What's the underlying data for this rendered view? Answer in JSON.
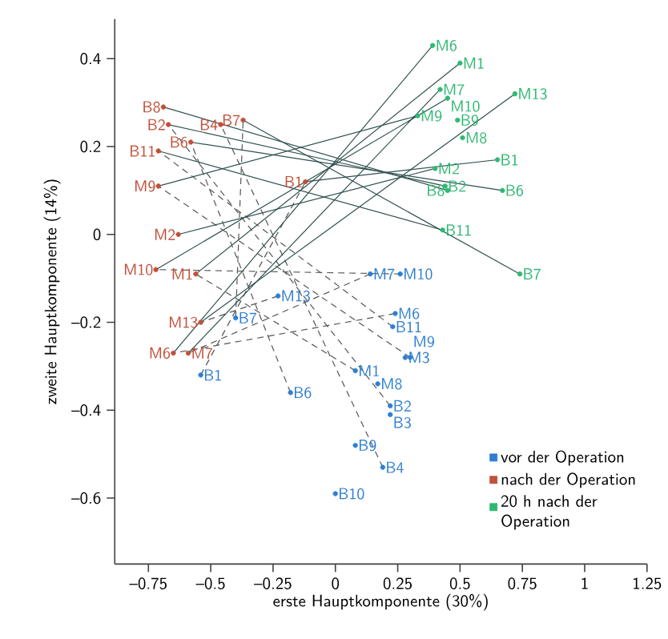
{
  "chart_data": {
    "type": "scatter",
    "xlabel": "erste Hauptkomponente (30%)",
    "ylabel": "zweite Hauptkomponente (14%)",
    "xlim": [
      -0.885,
      1.25
    ],
    "ylim": [
      -0.75,
      0.49
    ],
    "xticks": [
      {
        "value": -0.75,
        "label": "–0.75"
      },
      {
        "value": -0.5,
        "label": "–0.5"
      },
      {
        "value": -0.25,
        "label": "–0.25"
      },
      0,
      0.25,
      0.5,
      0.75,
      1,
      1.25
    ],
    "yticks": [
      {
        "value": -0.6,
        "label": "–0.6"
      },
      {
        "value": -0.4,
        "label": "–0.4"
      },
      {
        "value": -0.2,
        "label": "–0.2"
      },
      0,
      0.2,
      0.4
    ],
    "legend": "bottom right",
    "grid": false,
    "series": [
      {
        "name": "vor der Operation",
        "color": "#2f7fd0",
        "marker": "circle",
        "x": [
          -0.54,
          0.22,
          0.22,
          0.19,
          -0.18,
          -0.4,
          0.08,
          0.0,
          0.23,
          0.08,
          0.28,
          0.24,
          0.14,
          0.17,
          0.3,
          0.26,
          -0.23
        ],
        "values": [
          -0.32,
          -0.39,
          -0.41,
          -0.53,
          -0.36,
          -0.19,
          -0.48,
          -0.59,
          -0.21,
          -0.31,
          -0.28,
          -0.18,
          -0.09,
          -0.34,
          -0.28,
          -0.09,
          -0.14
        ],
        "value_labels": [
          "B1",
          "B2",
          "B3",
          "B4",
          "B6",
          "B7",
          "B9",
          "B10",
          "B11",
          "M1",
          "M3",
          "M6",
          "M7",
          "M8",
          "M9",
          "M10",
          "M13"
        ]
      },
      {
        "name": "nach der Operation",
        "color": "#c0503a",
        "marker": "circle",
        "x": [
          -0.12,
          -0.67,
          -0.69,
          -0.46,
          -0.37,
          -0.58,
          -0.71,
          -0.71,
          -0.63,
          -0.72,
          -0.56,
          -0.54,
          -0.65,
          -0.59
        ],
        "values": [
          0.12,
          0.25,
          0.29,
          0.25,
          0.26,
          0.21,
          0.19,
          0.11,
          0.0,
          -0.08,
          -0.09,
          -0.2,
          -0.27,
          -0.27
        ],
        "value_labels": [
          "B1",
          "B2",
          "B8",
          "B4",
          "B7",
          "B6",
          "B11",
          "M9",
          "M2",
          "M10",
          "M1",
          "M13",
          "M6",
          "M7"
        ]
      },
      {
        "name": "20 h nach der Operation",
        "color": "#2fb872",
        "marker": "circle",
        "x": [
          0.39,
          0.5,
          0.42,
          0.45,
          0.33,
          0.49,
          0.51,
          0.72,
          0.65,
          0.4,
          0.44,
          0.45,
          0.67,
          0.43,
          0.74
        ],
        "values": [
          0.43,
          0.39,
          0.33,
          0.31,
          0.27,
          0.26,
          0.22,
          0.32,
          0.17,
          0.15,
          0.11,
          0.1,
          0.1,
          0.01,
          -0.09
        ],
        "value_labels": [
          "M6",
          "M1",
          "M7",
          "M10",
          "M9",
          "B9",
          "M8",
          "M13",
          "B1",
          "M2",
          "B2",
          "B8",
          "B6",
          "B11",
          "B7"
        ]
      },
      {
        "type": "line",
        "color": "#555555",
        "line_style": "dashed",
        "marker": "none",
        "x": [
          -0.54,
          -0.12
        ],
        "values": [
          -0.32,
          0.12
        ]
      },
      {
        "type": "line",
        "color": "#555555",
        "line_style": "dashed",
        "marker": "none",
        "x": [
          0.22,
          -0.67
        ],
        "values": [
          -0.39,
          0.25
        ]
      },
      {
        "type": "line",
        "color": "#555555",
        "line_style": "dashed",
        "marker": "none",
        "x": [
          0.19,
          -0.46
        ],
        "values": [
          -0.53,
          0.25
        ]
      },
      {
        "type": "line",
        "color": "#555555",
        "line_style": "dashed",
        "marker": "none",
        "x": [
          -0.18,
          -0.58
        ],
        "values": [
          -0.36,
          0.21
        ]
      },
      {
        "type": "line",
        "color": "#555555",
        "line_style": "dashed",
        "marker": "none",
        "x": [
          -0.4,
          -0.37
        ],
        "values": [
          -0.19,
          0.26
        ]
      },
      {
        "type": "line",
        "color": "#555555",
        "line_style": "dashed",
        "marker": "none",
        "x": [
          0.23,
          -0.71
        ],
        "values": [
          -0.21,
          0.19
        ]
      },
      {
        "type": "line",
        "color": "#555555",
        "line_style": "dashed",
        "marker": "none",
        "x": [
          0.08,
          -0.56
        ],
        "values": [
          -0.31,
          -0.09
        ]
      },
      {
        "type": "line",
        "color": "#555555",
        "line_style": "dashed",
        "marker": "none",
        "x": [
          0.24,
          -0.65
        ],
        "values": [
          -0.18,
          -0.27
        ]
      },
      {
        "type": "line",
        "color": "#555555",
        "line_style": "dashed",
        "marker": "none",
        "x": [
          0.14,
          -0.59
        ],
        "values": [
          -0.09,
          -0.27
        ]
      },
      {
        "type": "line",
        "color": "#555555",
        "line_style": "dashed",
        "marker": "none",
        "x": [
          0.3,
          -0.71
        ],
        "values": [
          -0.28,
          0.11
        ]
      },
      {
        "type": "line",
        "color": "#555555",
        "line_style": "dashed",
        "marker": "none",
        "x": [
          0.26,
          -0.72
        ],
        "values": [
          -0.09,
          -0.08
        ]
      },
      {
        "type": "line",
        "color": "#555555",
        "line_style": "dashed",
        "marker": "none",
        "x": [
          -0.23,
          -0.54
        ],
        "values": [
          -0.14,
          -0.2
        ]
      },
      {
        "type": "line",
        "color": "#2f4f4f",
        "line_style": "solid",
        "marker": "none",
        "x": [
          -0.12,
          0.65
        ],
        "values": [
          0.12,
          0.17
        ]
      },
      {
        "type": "line",
        "color": "#2f4f4f",
        "line_style": "solid",
        "marker": "none",
        "x": [
          -0.67,
          0.44
        ],
        "values": [
          0.25,
          0.11
        ]
      },
      {
        "type": "line",
        "color": "#2f4f4f",
        "line_style": "solid",
        "marker": "none",
        "x": [
          -0.69,
          0.45
        ],
        "values": [
          0.29,
          0.1
        ]
      },
      {
        "type": "line",
        "color": "#2f4f4f",
        "line_style": "solid",
        "marker": "none",
        "x": [
          -0.58,
          0.67
        ],
        "values": [
          0.21,
          0.1
        ]
      },
      {
        "type": "line",
        "color": "#2f4f4f",
        "line_style": "solid",
        "marker": "none",
        "x": [
          -0.37,
          0.74
        ],
        "values": [
          0.26,
          -0.09
        ]
      },
      {
        "type": "line",
        "color": "#2f4f4f",
        "line_style": "solid",
        "marker": "none",
        "x": [
          -0.71,
          0.43
        ],
        "values": [
          0.19,
          0.01
        ]
      },
      {
        "type": "line",
        "color": "#2f4f4f",
        "line_style": "solid",
        "marker": "none",
        "x": [
          -0.71,
          0.33
        ],
        "values": [
          0.11,
          0.27
        ]
      },
      {
        "type": "line",
        "color": "#2f4f4f",
        "line_style": "solid",
        "marker": "none",
        "x": [
          -0.63,
          0.4
        ],
        "values": [
          0.0,
          0.15
        ]
      },
      {
        "type": "line",
        "color": "#2f4f4f",
        "line_style": "solid",
        "marker": "none",
        "x": [
          -0.72,
          0.45
        ],
        "values": [
          -0.08,
          0.31
        ]
      },
      {
        "type": "line",
        "color": "#2f4f4f",
        "line_style": "solid",
        "marker": "none",
        "x": [
          -0.56,
          0.5
        ],
        "values": [
          -0.09,
          0.39
        ]
      },
      {
        "type": "line",
        "color": "#2f4f4f",
        "line_style": "solid",
        "marker": "none",
        "x": [
          -0.54,
          0.72
        ],
        "values": [
          -0.2,
          0.32
        ]
      },
      {
        "type": "line",
        "color": "#2f4f4f",
        "line_style": "solid",
        "marker": "none",
        "x": [
          -0.65,
          0.39
        ],
        "values": [
          -0.27,
          0.43
        ]
      },
      {
        "type": "line",
        "color": "#2f4f4f",
        "line_style": "solid",
        "marker": "none",
        "x": [
          -0.59,
          0.42
        ],
        "values": [
          -0.27,
          0.33
        ]
      }
    ]
  }
}
